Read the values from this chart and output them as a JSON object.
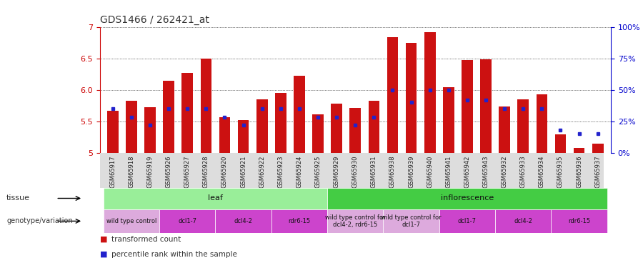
{
  "title": "GDS1466 / 262421_at",
  "samples": [
    "GSM65917",
    "GSM65918",
    "GSM65919",
    "GSM65926",
    "GSM65927",
    "GSM65928",
    "GSM65920",
    "GSM65921",
    "GSM65922",
    "GSM65923",
    "GSM65924",
    "GSM65925",
    "GSM65929",
    "GSM65930",
    "GSM65931",
    "GSM65938",
    "GSM65939",
    "GSM65940",
    "GSM65941",
    "GSM65942",
    "GSM65943",
    "GSM65932",
    "GSM65933",
    "GSM65934",
    "GSM65935",
    "GSM65936",
    "GSM65937"
  ],
  "transformed_count": [
    5.67,
    5.82,
    5.72,
    6.14,
    6.27,
    6.5,
    5.56,
    5.52,
    5.85,
    5.95,
    6.22,
    5.61,
    5.78,
    5.71,
    5.82,
    6.84,
    6.74,
    6.92,
    6.04,
    6.47,
    6.48,
    5.74,
    5.85,
    5.93,
    5.29,
    5.08,
    5.15
  ],
  "percentile_values": [
    35,
    28,
    22,
    35,
    35,
    35,
    28,
    22,
    35,
    35,
    35,
    28,
    28,
    22,
    28,
    50,
    40,
    50,
    50,
    42,
    42,
    35,
    35,
    35,
    18,
    15,
    15
  ],
  "ymin": 5.0,
  "ymax": 7.0,
  "yticks": [
    5.0,
    5.5,
    6.0,
    6.5,
    7.0
  ],
  "right_yticks": [
    0,
    25,
    50,
    75,
    100
  ],
  "right_ytick_labels": [
    "0%",
    "25%",
    "50%",
    "75%",
    "100%"
  ],
  "bar_color": "#cc1111",
  "percentile_color": "#2222cc",
  "bg_color": "#ffffff",
  "grid_color": "#000000",
  "tissue_groups": [
    {
      "label": "leaf",
      "start": 0,
      "end": 11,
      "color": "#99ee99"
    },
    {
      "label": "inflorescence",
      "start": 12,
      "end": 26,
      "color": "#44cc44"
    }
  ],
  "genotype_groups": [
    {
      "label": "wild type control",
      "start": 0,
      "end": 2,
      "color": "#ddaadd"
    },
    {
      "label": "dcl1-7",
      "start": 3,
      "end": 5,
      "color": "#cc44cc"
    },
    {
      "label": "dcl4-2",
      "start": 6,
      "end": 8,
      "color": "#cc44cc"
    },
    {
      "label": "rdr6-15",
      "start": 9,
      "end": 11,
      "color": "#cc44cc"
    },
    {
      "label": "wild type control for\ndcl4-2, rdr6-15",
      "start": 12,
      "end": 14,
      "color": "#ddaadd"
    },
    {
      "label": "wild type control for\ndcl1-7",
      "start": 15,
      "end": 17,
      "color": "#ddaadd"
    },
    {
      "label": "dcl1-7",
      "start": 18,
      "end": 20,
      "color": "#cc44cc"
    },
    {
      "label": "dcl4-2",
      "start": 21,
      "end": 23,
      "color": "#cc44cc"
    },
    {
      "label": "rdr6-15",
      "start": 24,
      "end": 26,
      "color": "#cc44cc"
    }
  ],
  "xlabel_fontsize": 6.0,
  "title_fontsize": 10,
  "tick_fontsize": 8,
  "label_color_left": "#cc0000",
  "label_color_right": "#0000cc"
}
